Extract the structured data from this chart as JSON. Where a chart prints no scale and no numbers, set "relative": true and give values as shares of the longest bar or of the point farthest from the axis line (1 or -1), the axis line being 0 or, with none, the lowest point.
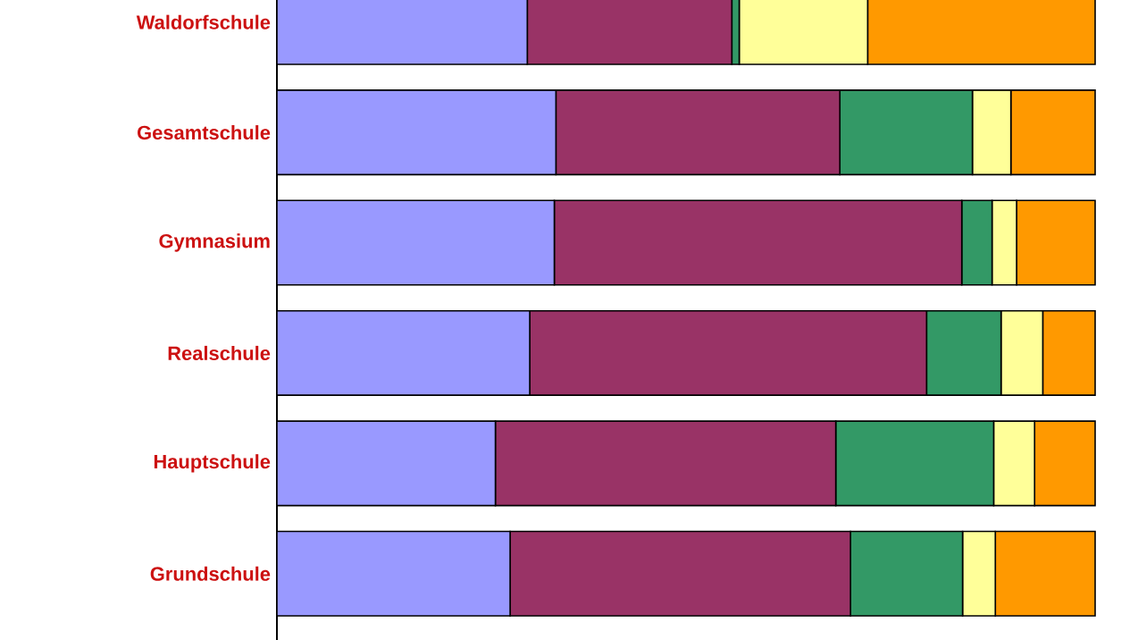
{
  "chart_data": {
    "type": "bar",
    "orientation": "horizontal",
    "stacked": true,
    "relative": true,
    "categories": [
      "Waldorfschule",
      "Gesamtschule",
      "Gymnasium",
      "Realschule",
      "Hauptschule",
      "Grundschule"
    ],
    "series": [
      {
        "color": "#9999ff",
        "values": [
          0.306,
          0.341,
          0.339,
          0.309,
          0.267,
          0.285
        ]
      },
      {
        "color": "#993366",
        "values": [
          0.25,
          0.347,
          0.498,
          0.485,
          0.416,
          0.416
        ]
      },
      {
        "color": "#339966",
        "values": [
          0.009,
          0.162,
          0.037,
          0.091,
          0.193,
          0.137
        ]
      },
      {
        "color": "#ffff99",
        "values": [
          0.157,
          0.047,
          0.03,
          0.051,
          0.05,
          0.04
        ]
      },
      {
        "color": "#ff9900",
        "values": [
          0.278,
          0.103,
          0.096,
          0.064,
          0.074,
          0.122
        ]
      }
    ]
  }
}
